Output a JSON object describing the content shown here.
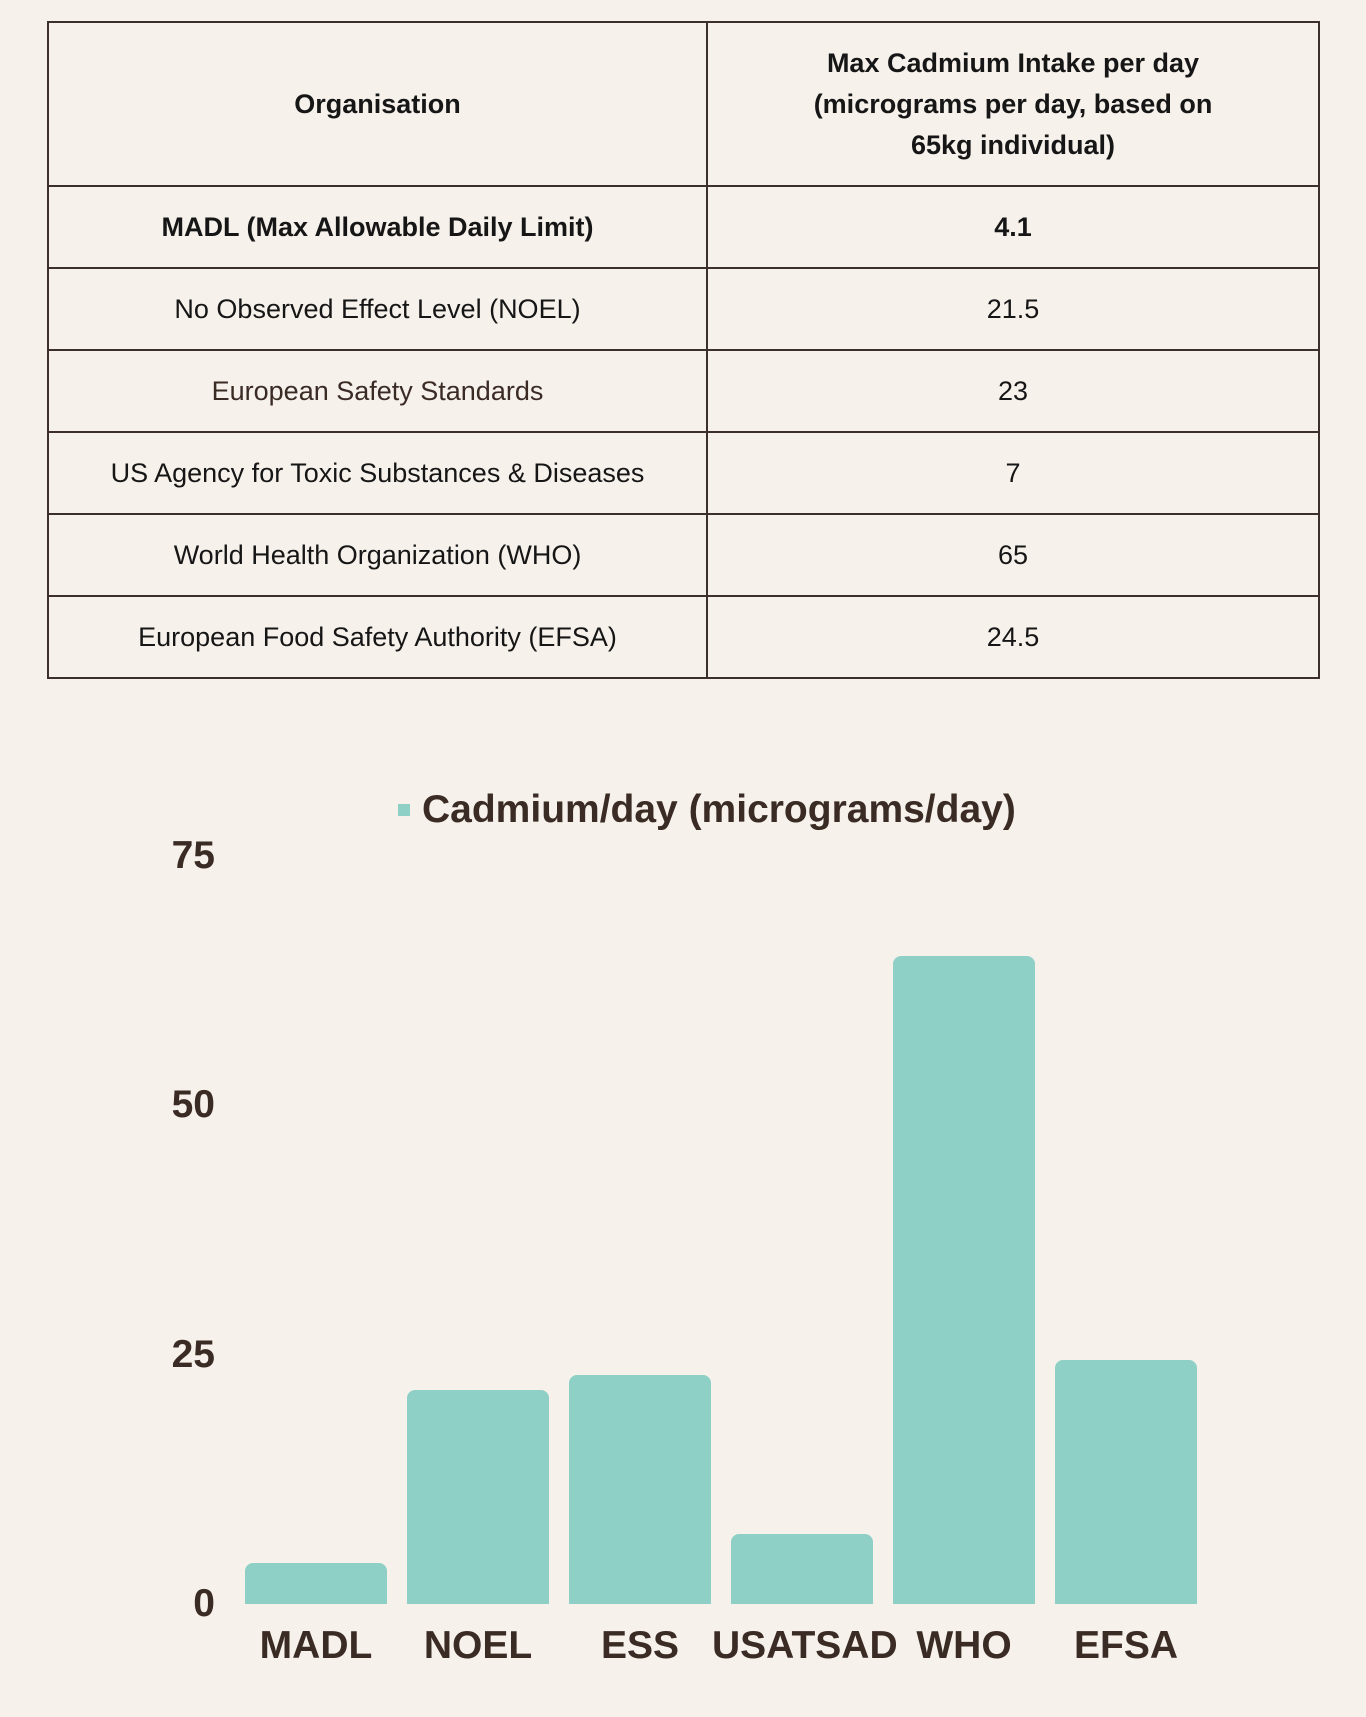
{
  "table": {
    "headers": [
      "Organisation",
      "Max Cadmium Intake per day (micrograms per day, based on 65kg individual)"
    ],
    "rows": [
      {
        "org": "MADL (Max Allowable Daily Limit)",
        "value": "4.1"
      },
      {
        "org": "No Observed Effect Level (NOEL)",
        "value": "21.5"
      },
      {
        "org": "European Safety Standards",
        "value": "23"
      },
      {
        "org": "US Agency for Toxic Substances & Diseases",
        "value": "7"
      },
      {
        "org": "World Health Organization (WHO)",
        "value": "65"
      },
      {
        "org": "European Food Safety Authority (EFSA)",
        "value": "24.5"
      }
    ]
  },
  "colors": {
    "bar": "#8ed0c5",
    "background": "#f6f1eb",
    "text": "#3b2b25"
  },
  "chart_data": {
    "type": "bar",
    "title": "",
    "legend": [
      "Cadmium/day (micrograms/day)"
    ],
    "legend_position": "top",
    "categories": [
      "MADL",
      "NOEL",
      "ESS",
      "USATSAD",
      "WHO",
      "EFSA"
    ],
    "series": [
      {
        "name": "Cadmium/day (micrograms/day)",
        "values": [
          4.1,
          21.5,
          23,
          7,
          65,
          24.5
        ]
      }
    ],
    "xlabel": "",
    "ylabel": "",
    "yticks": [
      "0",
      "25",
      "50",
      "75"
    ],
    "ylim": [
      0,
      75
    ],
    "grid": false
  }
}
